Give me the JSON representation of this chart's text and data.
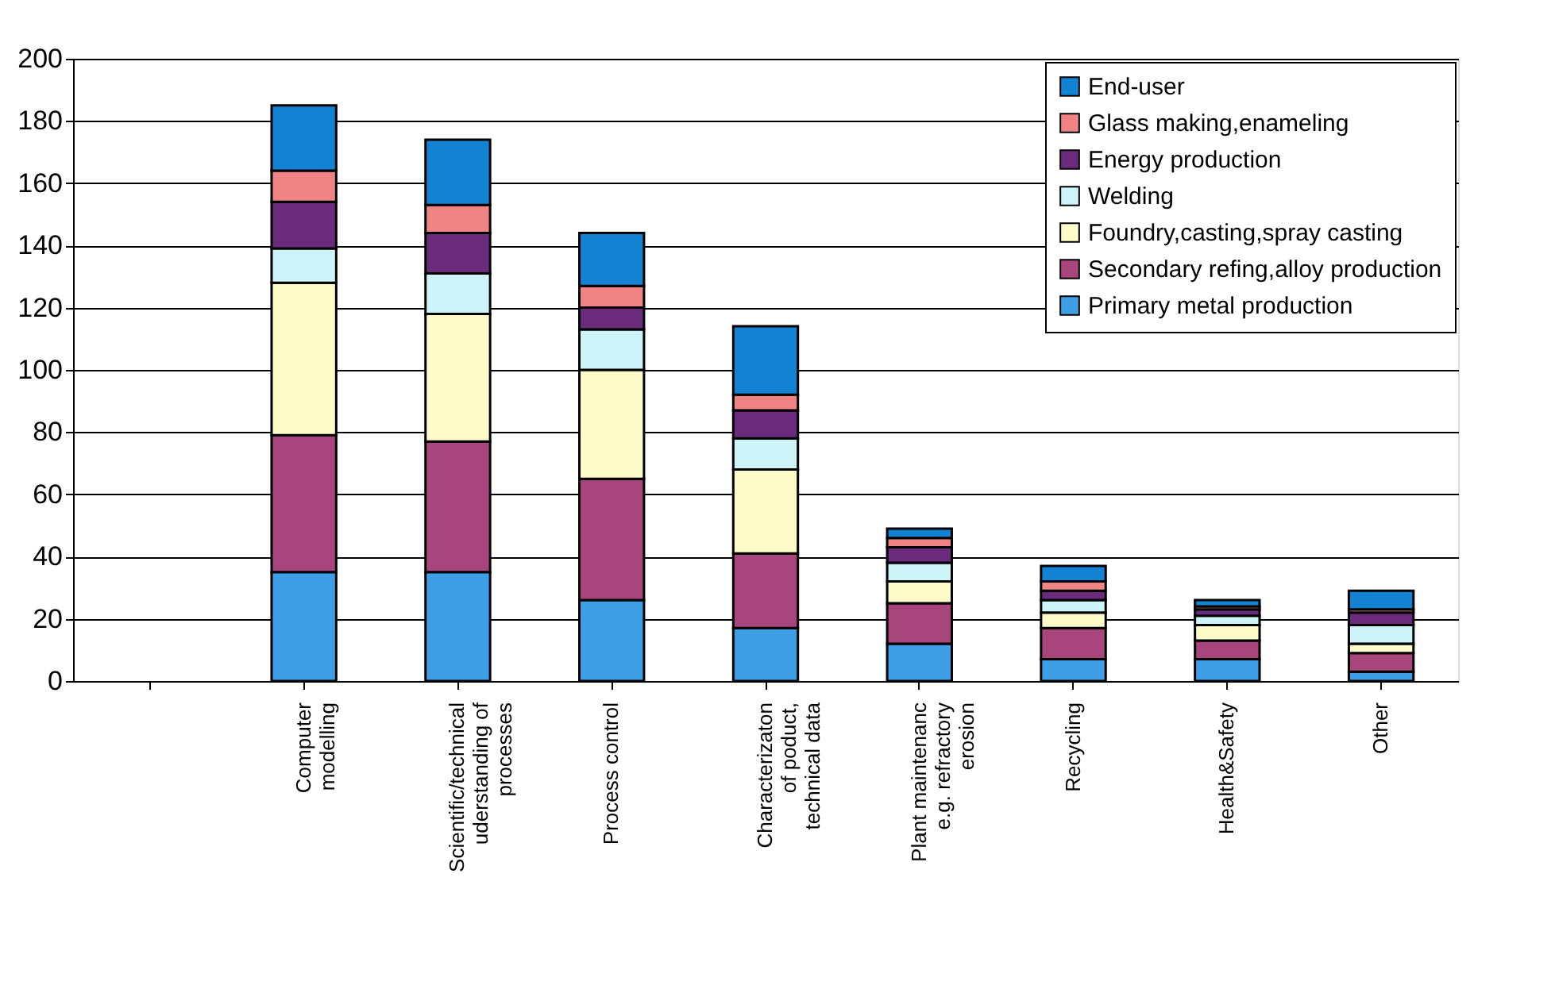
{
  "chart_data": {
    "type": "bar",
    "stacked": true,
    "categories": [
      null,
      "Computer\nmodelling",
      "Scientific/technical\nuderstanding of\nprocesses",
      "Process control",
      "Characterizaton\nof poduct,\ntechnical data",
      "Plant maintenanc\ne.g. refractory\nerosion",
      "Recycling",
      "Health&Safety",
      "Other"
    ],
    "series": [
      {
        "name": "Primary metal production",
        "color": "#3f9fe6",
        "values": [
          null,
          35,
          35,
          26,
          17,
          12,
          7,
          7,
          3
        ]
      },
      {
        "name": "Secondary refing,alloy production",
        "color": "#a8457c",
        "values": [
          null,
          44,
          42,
          39,
          24,
          13,
          10,
          6,
          6
        ]
      },
      {
        "name": "Foundry,casting,spray casting",
        "color": "#fdfbc8",
        "values": [
          null,
          49,
          41,
          35,
          27,
          7,
          5,
          5,
          3
        ]
      },
      {
        "name": "Welding",
        "color": "#cdf4f8",
        "values": [
          null,
          11,
          13,
          13,
          10,
          6,
          4,
          3,
          6
        ]
      },
      {
        "name": "Energy production",
        "color": "#6b2b7c",
        "values": [
          null,
          15,
          13,
          7,
          9,
          5,
          3,
          2,
          4
        ]
      },
      {
        "name": "Glass making,enameling",
        "color": "#f08484",
        "values": [
          null,
          10,
          9,
          7,
          5,
          3,
          3,
          1,
          1
        ]
      },
      {
        "name": "End-user",
        "color": "#1382d2",
        "values": [
          null,
          21,
          21,
          17,
          22,
          3,
          5,
          2,
          6
        ]
      }
    ],
    "ylim": [
      0,
      200
    ],
    "yticks": [
      0,
      20,
      40,
      60,
      80,
      100,
      120,
      140,
      160,
      180,
      200
    ],
    "grid": "y",
    "legend": "top right"
  }
}
